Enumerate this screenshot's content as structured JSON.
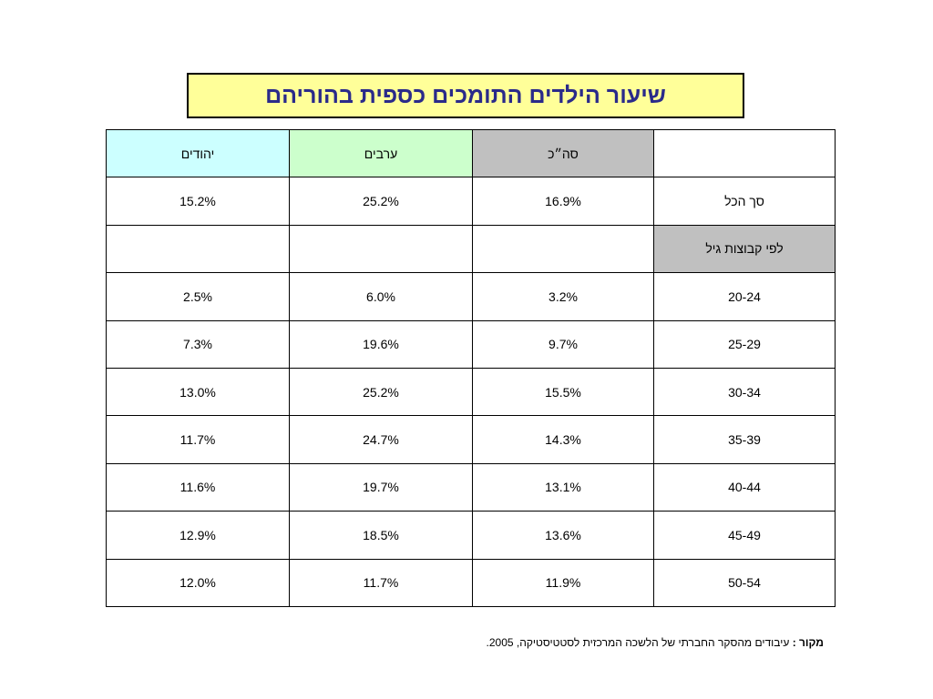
{
  "title": "שיעור הילדים התומכים כספית בהוריהם",
  "table": {
    "headers": {
      "label": "",
      "total": "סה״כ",
      "arabs": "ערבים",
      "jews": "יהודים"
    },
    "total_row": {
      "label": "סך הכל",
      "total": "16.9%",
      "arabs": "25.2%",
      "jews": "15.2%"
    },
    "section_label": "לפי קבוצות גיל",
    "rows": [
      {
        "label": "20-24",
        "total": "3.2%",
        "arabs": "6.0%",
        "jews": "2.5%"
      },
      {
        "label": "25-29",
        "total": "9.7%",
        "arabs": "19.6%",
        "jews": "7.3%"
      },
      {
        "label": "30-34",
        "total": "15.5%",
        "arabs": "25.2%",
        "jews": "13.0%"
      },
      {
        "label": "35-39",
        "total": "14.3%",
        "arabs": "24.7%",
        "jews": "11.7%"
      },
      {
        "label": "40-44",
        "total": "13.1%",
        "arabs": "19.7%",
        "jews": "11.6%"
      },
      {
        "label": "45-49",
        "total": "13.6%",
        "arabs": "18.5%",
        "jews": "12.9%"
      },
      {
        "label": "50-54",
        "total": "11.9%",
        "arabs": "11.7%",
        "jews": "12.0%"
      }
    ]
  },
  "source": {
    "label": "מקור :",
    "text": "עיבודים מהסקר החברתי של הלשכה המרכזית לסטטיסטיקה,  2005."
  },
  "colors": {
    "title_bg": "#ffff99",
    "title_text": "#2a2a8a",
    "header_total_bg": "#c0c0c0",
    "header_arabs_bg": "#ccffcc",
    "header_jews_bg": "#ccffff",
    "section_bg": "#c0c0c0"
  }
}
